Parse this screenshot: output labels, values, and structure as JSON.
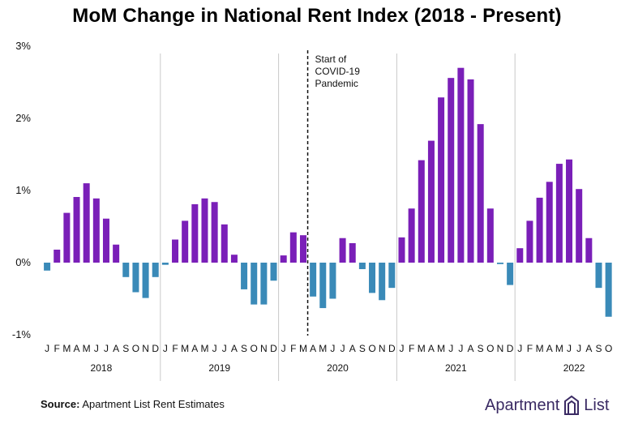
{
  "title": "MoM Change in National Rent Index (2018 - Present)",
  "source_label": "Source:",
  "source_text": "Apartment List Rent Estimates",
  "brand": {
    "word1": "Apartment",
    "word2": "List",
    "icon": "apartment-list-logo-icon"
  },
  "colors": {
    "positive": "#7a1fb8",
    "negative": "#3a8ab8",
    "divider": "#c9c9c9",
    "text": "#111111"
  },
  "chart_data": {
    "type": "bar",
    "ylim": [
      -1,
      3
    ],
    "yticks": [
      {
        "value": 3,
        "label": "3%"
      },
      {
        "value": 2,
        "label": "2%"
      },
      {
        "value": 1,
        "label": "1%"
      },
      {
        "value": 0,
        "label": "0%"
      },
      {
        "value": -1,
        "label": "-1%"
      }
    ],
    "annotation": {
      "lines": [
        "Start of",
        "COVID-19",
        "Pandemic"
      ],
      "after_month_index": 26
    },
    "years": [
      {
        "year": "2018",
        "months": [
          "J",
          "F",
          "M",
          "A",
          "M",
          "J",
          "J",
          "A",
          "S",
          "O",
          "N",
          "D"
        ],
        "values": [
          -0.11,
          0.18,
          0.69,
          0.91,
          1.1,
          0.89,
          0.61,
          0.25,
          -0.2,
          -0.41,
          -0.49,
          -0.2
        ]
      },
      {
        "year": "2019",
        "months": [
          "J",
          "F",
          "M",
          "A",
          "M",
          "J",
          "J",
          "A",
          "S",
          "O",
          "N",
          "D"
        ],
        "values": [
          -0.03,
          0.32,
          0.58,
          0.81,
          0.89,
          0.84,
          0.53,
          0.11,
          -0.37,
          -0.58,
          -0.58,
          -0.25
        ]
      },
      {
        "year": "2020",
        "months": [
          "J",
          "F",
          "M",
          "A",
          "M",
          "J",
          "J",
          "A",
          "S",
          "O",
          "N",
          "D"
        ],
        "values": [
          0.1,
          0.42,
          0.38,
          -0.47,
          -0.63,
          -0.5,
          0.34,
          0.27,
          -0.09,
          -0.42,
          -0.52,
          -0.35
        ]
      },
      {
        "year": "2021",
        "months": [
          "J",
          "F",
          "M",
          "A",
          "M",
          "J",
          "J",
          "A",
          "S",
          "O",
          "N",
          "D"
        ],
        "values": [
          0.35,
          0.75,
          1.42,
          1.69,
          2.29,
          2.56,
          2.7,
          2.54,
          1.92,
          0.75,
          -0.02,
          -0.31
        ]
      },
      {
        "year": "2022",
        "months": [
          "J",
          "F",
          "M",
          "A",
          "M",
          "J",
          "J",
          "A",
          "S",
          "O"
        ],
        "values": [
          0.2,
          0.58,
          0.9,
          1.12,
          1.37,
          1.43,
          1.02,
          0.34,
          -0.35,
          -0.75
        ]
      }
    ]
  }
}
